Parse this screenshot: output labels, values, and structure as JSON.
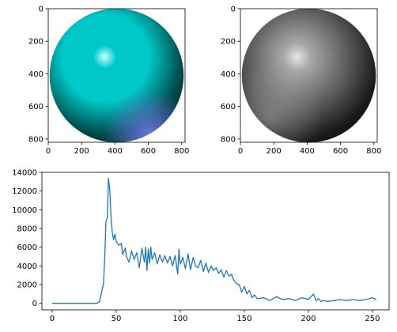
{
  "colors": {
    "axes": "#000000",
    "line": "#1f77b4",
    "background": "#ffffff",
    "sphere_color_base": "#00c8c8",
    "sphere_color_highlight": "#c8ffff",
    "sphere_color_shadow_tint": "#8080ff"
  },
  "chart_data": [
    {
      "type": "image",
      "image": "cyan shaded sphere with a light-blue tint at bottom right",
      "xlim": [
        0,
        820
      ],
      "ylim": [
        820,
        0
      ],
      "xticks": [
        "0",
        "200",
        "400",
        "600",
        "800"
      ],
      "yticks": [
        "0",
        "200",
        "400",
        "600",
        "800"
      ]
    },
    {
      "type": "image",
      "image": "grayscale shaded sphere",
      "xlim": [
        0,
        820
      ],
      "ylim": [
        820,
        0
      ],
      "xticks": [
        "0",
        "200",
        "400",
        "600",
        "800"
      ],
      "yticks": [
        "0",
        "200",
        "400",
        "600",
        "800"
      ]
    },
    {
      "type": "line",
      "xlim": [
        -8,
        263
      ],
      "ylim": [
        -700,
        14000
      ],
      "xticks": [
        "0",
        "50",
        "100",
        "150",
        "200",
        "250"
      ],
      "yticks": [
        "0",
        "2000",
        "4000",
        "6000",
        "8000",
        "10000",
        "12000",
        "14000"
      ],
      "x": [
        0,
        35,
        37,
        38,
        39,
        40,
        41,
        42,
        43,
        44,
        45,
        46,
        47,
        48,
        49,
        50,
        52,
        54,
        55,
        57,
        58,
        60,
        62,
        64,
        66,
        68,
        70,
        72,
        73,
        74,
        75,
        76,
        77,
        78,
        80,
        82,
        84,
        86,
        88,
        90,
        92,
        94,
        96,
        98,
        99,
        100,
        102,
        104,
        106,
        108,
        110,
        112,
        114,
        116,
        118,
        120,
        122,
        124,
        126,
        128,
        130,
        132,
        134,
        136,
        138,
        140,
        142,
        144,
        146,
        148,
        150,
        152,
        154,
        156,
        158,
        160,
        165,
        170,
        175,
        180,
        185,
        190,
        195,
        200,
        204,
        206,
        208,
        210,
        212,
        215,
        220,
        225,
        230,
        235,
        240,
        245,
        250,
        253
      ],
      "values": [
        0,
        0,
        200,
        800,
        1500,
        2000,
        4800,
        8800,
        9100,
        13400,
        12000,
        9000,
        7500,
        6800,
        7400,
        6600,
        6200,
        6400,
        5200,
        5900,
        5000,
        4400,
        5600,
        4700,
        5400,
        3800,
        5900,
        4400,
        6000,
        3500,
        5800,
        4300,
        6000,
        4700,
        5400,
        4200,
        5200,
        4400,
        5100,
        4300,
        5000,
        4000,
        5100,
        3100,
        5800,
        4200,
        4900,
        3700,
        5300,
        3600,
        4900,
        4000,
        3800,
        4600,
        3400,
        4300,
        3300,
        4000,
        3500,
        3800,
        3200,
        3600,
        2800,
        3500,
        2900,
        3100,
        2400,
        2100,
        2000,
        1200,
        1800,
        1000,
        1400,
        600,
        900,
        500,
        600,
        300,
        700,
        400,
        500,
        300,
        600,
        400,
        1000,
        300,
        500,
        200,
        300,
        200,
        300,
        400,
        300,
        400,
        300,
        400,
        600,
        400
      ]
    }
  ]
}
